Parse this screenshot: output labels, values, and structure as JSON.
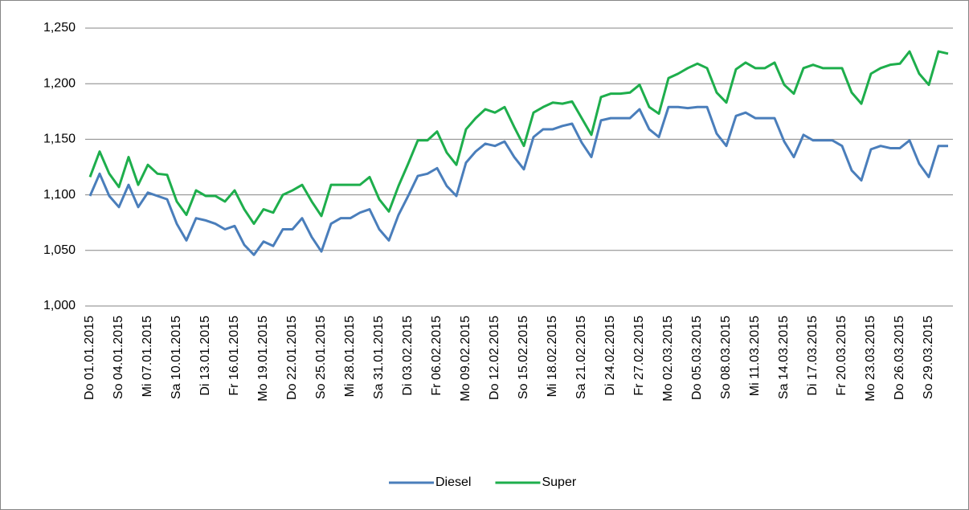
{
  "chart_data": {
    "type": "line",
    "categories": [
      "Do 01.01.2015",
      null,
      null,
      "So 04.01.2015",
      null,
      null,
      "Mi 07.01.2015",
      null,
      null,
      "Sa 10.01.2015",
      null,
      null,
      "Di 13.01.2015",
      null,
      null,
      "Fr 16.01.2015",
      null,
      null,
      "Mo 19.01.2015",
      null,
      null,
      "Do 22.01.2015",
      null,
      null,
      "So 25.01.2015",
      null,
      null,
      "Mi 28.01.2015",
      null,
      null,
      "Sa 31.01.2015",
      null,
      null,
      "Di 03.02.2015",
      null,
      null,
      "Fr 06.02.2015",
      null,
      null,
      "Mo 09.02.2015",
      null,
      null,
      "Do 12.02.2015",
      null,
      null,
      "So 15.02.2015",
      null,
      null,
      "Mi 18.02.2015",
      null,
      null,
      "Sa 21.02.2015",
      null,
      null,
      "Di 24.02.2015",
      null,
      null,
      "Fr 27.02.2015",
      null,
      null,
      "Mo 02.03.2015",
      null,
      null,
      "Do 05.03.2015",
      null,
      null,
      "So 08.03.2015",
      null,
      null,
      "Mi 11.03.2015",
      null,
      null,
      "Sa 14.03.2015",
      null,
      null,
      "Di 17.03.2015",
      null,
      null,
      "Fr 20.03.2015",
      null,
      null,
      "Mo 23.03.2015",
      null,
      null,
      "Do 26.03.2015",
      null,
      null,
      "So 29.03.2015",
      null,
      null
    ],
    "series": [
      {
        "name": "Diesel",
        "color": "#4a7ebb",
        "values": [
          1.099,
          1.119,
          1.099,
          1.089,
          1.109,
          1.089,
          1.102,
          1.099,
          1.096,
          1.074,
          1.059,
          1.079,
          1.077,
          1.074,
          1.069,
          1.072,
          1.055,
          1.046,
          1.058,
          1.054,
          1.069,
          1.069,
          1.079,
          1.062,
          1.049,
          1.074,
          1.079,
          1.079,
          1.084,
          1.087,
          1.069,
          1.059,
          1.082,
          1.099,
          1.117,
          1.119,
          1.124,
          1.108,
          1.099,
          1.129,
          1.139,
          1.146,
          1.144,
          1.148,
          1.134,
          1.123,
          1.152,
          1.159,
          1.159,
          1.162,
          1.164,
          1.147,
          1.134,
          1.167,
          1.169,
          1.169,
          1.169,
          1.177,
          1.159,
          1.152,
          1.179,
          1.179,
          1.178,
          1.179,
          1.179,
          1.155,
          1.144,
          1.171,
          1.174,
          1.169,
          1.169,
          1.169,
          1.148,
          1.134,
          1.154,
          1.149,
          1.149,
          1.149,
          1.144,
          1.122,
          1.113,
          1.141,
          1.144,
          1.142,
          1.142,
          1.149,
          1.128,
          1.116,
          1.144,
          1.144
        ]
      },
      {
        "name": "Super",
        "color": "#1eae4c",
        "values": [
          1.116,
          1.139,
          1.119,
          1.107,
          1.134,
          1.109,
          1.127,
          1.119,
          1.118,
          1.094,
          1.082,
          1.104,
          1.099,
          1.099,
          1.094,
          1.104,
          1.087,
          1.074,
          1.087,
          1.084,
          1.1,
          1.104,
          1.109,
          1.094,
          1.081,
          1.109,
          1.109,
          1.109,
          1.109,
          1.116,
          1.096,
          1.085,
          1.108,
          1.128,
          1.149,
          1.149,
          1.157,
          1.138,
          1.127,
          1.159,
          1.169,
          1.177,
          1.174,
          1.179,
          1.161,
          1.144,
          1.174,
          1.179,
          1.183,
          1.182,
          1.184,
          1.169,
          1.154,
          1.188,
          1.191,
          1.191,
          1.192,
          1.199,
          1.179,
          1.173,
          1.205,
          1.209,
          1.214,
          1.218,
          1.214,
          1.192,
          1.183,
          1.213,
          1.219,
          1.214,
          1.214,
          1.219,
          1.199,
          1.191,
          1.214,
          1.217,
          1.214,
          1.214,
          1.214,
          1.192,
          1.182,
          1.209,
          1.214,
          1.217,
          1.218,
          1.229,
          1.209,
          1.199,
          1.229,
          1.227
        ]
      }
    ],
    "ylim": [
      1.0,
      1.25
    ],
    "yticks": [
      {
        "value": 1.0,
        "label": "1,000"
      },
      {
        "value": 1.05,
        "label": "1,050"
      },
      {
        "value": 1.1,
        "label": "1,100"
      },
      {
        "value": 1.15,
        "label": "1,150"
      },
      {
        "value": 1.2,
        "label": "1,200"
      },
      {
        "value": 1.25,
        "label": "1,250"
      }
    ],
    "grid": true,
    "legend": "bottom"
  }
}
